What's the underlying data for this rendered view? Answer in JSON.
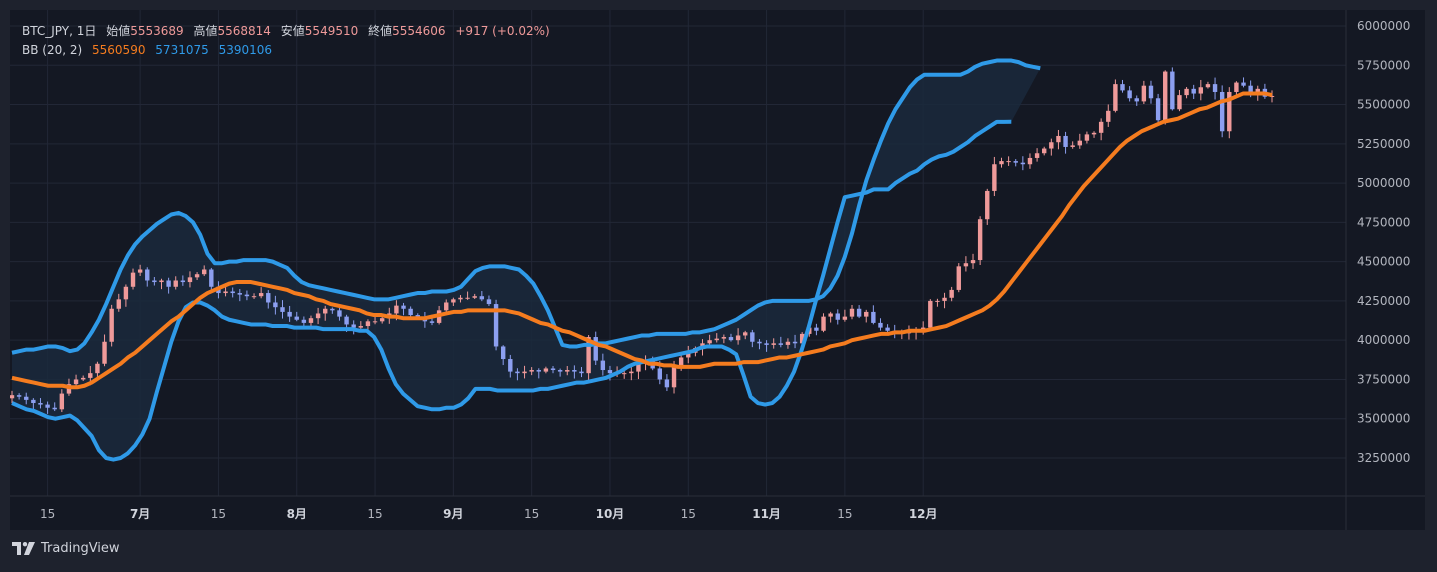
{
  "legend": {
    "symbol": "BTC_JPY, 1日",
    "open_label": "始値",
    "open": "5553689",
    "high_label": "高値",
    "high": "5568814",
    "low_label": "安値",
    "low": "5549510",
    "close_label": "終値",
    "close": "5554606",
    "change": "+917 (+0.02%)",
    "bb_label": "BB (20, 2)",
    "bb_basis": "5560590",
    "bb_upper": "5731075",
    "bb_lower": "5390106"
  },
  "footer": {
    "brand": "TradingView"
  },
  "colors": {
    "background": "#141823",
    "grid": "#222736",
    "up_candle": "#ef9a9a",
    "down_candle": "#8c9ff0",
    "basis": "#f57c1f",
    "bands": "#2f9ae8",
    "band_fill": "#1a2a3d"
  },
  "chart_data": {
    "type": "candlestick",
    "title": "BTC_JPY, 1日",
    "x_ticks": [
      "15",
      "7月",
      "15",
      "8月",
      "15",
      "9月",
      "15",
      "10月",
      "15",
      "11月",
      "15",
      "12月"
    ],
    "y_ticks": [
      "3250000",
      "3500000",
      "3750000",
      "4000000",
      "4250000",
      "4500000",
      "4750000",
      "5000000",
      "5250000",
      "5500000",
      "5750000",
      "6000000"
    ],
    "ylim": [
      3000000,
      6100000
    ],
    "grid": true,
    "closes": [
      3650000,
      3640000,
      3620000,
      3600000,
      3590000,
      3570000,
      3560000,
      3660000,
      3720000,
      3750000,
      3760000,
      3790000,
      3850000,
      3990000,
      4200000,
      4260000,
      4340000,
      4430000,
      4450000,
      4380000,
      4370000,
      4380000,
      4340000,
      4380000,
      4370000,
      4400000,
      4420000,
      4450000,
      4340000,
      4300000,
      4310000,
      4300000,
      4290000,
      4280000,
      4280000,
      4300000,
      4240000,
      4210000,
      4180000,
      4150000,
      4130000,
      4110000,
      4140000,
      4170000,
      4200000,
      4190000,
      4150000,
      4100000,
      4080000,
      4090000,
      4120000,
      4120000,
      4140000,
      4170000,
      4220000,
      4200000,
      4160000,
      4150000,
      4120000,
      4110000,
      4190000,
      4240000,
      4260000,
      4270000,
      4270000,
      4280000,
      4260000,
      4230000,
      3960000,
      3880000,
      3800000,
      3790000,
      3800000,
      3810000,
      3800000,
      3820000,
      3810000,
      3800000,
      3810000,
      3800000,
      3790000,
      4020000,
      3870000,
      3810000,
      3790000,
      3790000,
      3790000,
      3800000,
      3850000,
      3870000,
      3820000,
      3750000,
      3700000,
      3830000,
      3890000,
      3920000,
      3950000,
      3980000,
      4000000,
      4010000,
      4020000,
      4000000,
      4030000,
      4050000,
      3990000,
      3980000,
      3970000,
      3980000,
      3970000,
      3990000,
      3980000,
      4040000,
      4080000,
      4060000,
      4150000,
      4170000,
      4130000,
      4150000,
      4200000,
      4150000,
      4180000,
      4110000,
      4080000,
      4060000,
      4040000,
      4050000,
      4050000,
      4060000,
      4080000,
      4250000,
      4250000,
      4270000,
      4320000,
      4470000,
      4490000,
      4510000,
      4770000,
      4950000,
      5120000,
      5140000,
      5140000,
      5130000,
      5120000,
      5160000,
      5190000,
      5220000,
      5260000,
      5300000,
      5230000,
      5240000,
      5270000,
      5310000,
      5320000,
      5390000,
      5460000,
      5630000,
      5590000,
      5540000,
      5520000,
      5620000,
      5540000,
      5400000,
      5710000,
      5470000,
      5560000,
      5600000,
      5570000,
      5610000,
      5630000,
      5580000,
      5330000,
      5580000,
      5640000,
      5620000,
      5570000,
      5600000,
      5550000,
      5554606
    ],
    "series": [
      {
        "name": "5560590",
        "values": [
          3760000,
          3750000,
          3740000,
          3730000,
          3720000,
          3710000,
          3710000,
          3710000,
          3700000,
          3700000,
          3710000,
          3730000,
          3760000,
          3790000,
          3820000,
          3850000,
          3890000,
          3920000,
          3960000,
          4000000,
          4040000,
          4080000,
          4120000,
          4150000,
          4190000,
          4230000,
          4270000,
          4300000,
          4320000,
          4340000,
          4360000,
          4370000,
          4370000,
          4370000,
          4360000,
          4350000,
          4340000,
          4330000,
          4320000,
          4300000,
          4290000,
          4280000,
          4260000,
          4250000,
          4230000,
          4220000,
          4210000,
          4200000,
          4190000,
          4170000,
          4160000,
          4160000,
          4150000,
          4150000,
          4140000,
          4140000,
          4140000,
          4140000,
          4150000,
          4160000,
          4170000,
          4180000,
          4180000,
          4190000,
          4190000,
          4190000,
          4190000,
          4190000,
          4190000,
          4180000,
          4170000,
          4150000,
          4130000,
          4110000,
          4100000,
          4080000,
          4060000,
          4050000,
          4030000,
          4010000,
          3990000,
          3970000,
          3960000,
          3940000,
          3920000,
          3900000,
          3880000,
          3870000,
          3850000,
          3850000,
          3840000,
          3840000,
          3830000,
          3830000,
          3830000,
          3830000,
          3840000,
          3850000,
          3850000,
          3850000,
          3850000,
          3860000,
          3860000,
          3860000,
          3870000,
          3880000,
          3890000,
          3890000,
          3900000,
          3910000,
          3920000,
          3930000,
          3940000,
          3960000,
          3970000,
          3980000,
          4000000,
          4010000,
          4020000,
          4030000,
          4040000,
          4040000,
          4050000,
          4050000,
          4060000,
          4060000,
          4060000,
          4070000,
          4080000,
          4090000,
          4110000,
          4130000,
          4150000,
          4170000,
          4190000,
          4220000,
          4260000,
          4310000,
          4370000,
          4430000,
          4490000,
          4550000,
          4610000,
          4670000,
          4730000,
          4790000,
          4860000,
          4920000,
          4980000,
          5030000,
          5080000,
          5130000,
          5180000,
          5230000,
          5270000,
          5300000,
          5330000,
          5350000,
          5370000,
          5390000,
          5400000,
          5410000,
          5430000,
          5450000,
          5470000,
          5480000,
          5500000,
          5520000,
          5530000,
          5550000,
          5570000,
          5570000,
          5570000,
          5570000,
          5560590
        ]
      },
      {
        "name": "5731075",
        "values": [
          3920000,
          3930000,
          3940000,
          3940000,
          3950000,
          3960000,
          3960000,
          3950000,
          3930000,
          3940000,
          3980000,
          4050000,
          4130000,
          4230000,
          4340000,
          4450000,
          4540000,
          4610000,
          4660000,
          4700000,
          4740000,
          4770000,
          4800000,
          4810000,
          4790000,
          4750000,
          4670000,
          4550000,
          4490000,
          4490000,
          4500000,
          4500000,
          4510000,
          4510000,
          4510000,
          4510000,
          4500000,
          4480000,
          4460000,
          4410000,
          4370000,
          4350000,
          4340000,
          4330000,
          4320000,
          4310000,
          4300000,
          4290000,
          4280000,
          4270000,
          4260000,
          4260000,
          4260000,
          4270000,
          4280000,
          4290000,
          4300000,
          4300000,
          4310000,
          4310000,
          4310000,
          4320000,
          4340000,
          4390000,
          4440000,
          4460000,
          4470000,
          4470000,
          4470000,
          4460000,
          4450000,
          4410000,
          4360000,
          4280000,
          4190000,
          4080000,
          3970000,
          3960000,
          3960000,
          3970000,
          3970000,
          3980000,
          3980000,
          3990000,
          4000000,
          4010000,
          4020000,
          4030000,
          4030000,
          4040000,
          4040000,
          4040000,
          4040000,
          4040000,
          4050000,
          4050000,
          4060000,
          4070000,
          4090000,
          4110000,
          4130000,
          4160000,
          4190000,
          4220000,
          4240000,
          4250000,
          4250000,
          4250000,
          4250000,
          4250000,
          4250000,
          4260000,
          4280000,
          4330000,
          4410000,
          4530000,
          4680000,
          4860000,
          5020000,
          5150000,
          5270000,
          5380000,
          5470000,
          5540000,
          5610000,
          5660000,
          5690000,
          5690000,
          5690000,
          5690000,
          5690000,
          5690000,
          5710000,
          5740000,
          5760000,
          5770000,
          5780000,
          5780000,
          5780000,
          5770000,
          5750000,
          5740000,
          5731075
        ]
      },
      {
        "name": "5390106",
        "values": [
          3600000,
          3580000,
          3560000,
          3550000,
          3530000,
          3510000,
          3500000,
          3510000,
          3520000,
          3490000,
          3440000,
          3390000,
          3300000,
          3250000,
          3240000,
          3250000,
          3280000,
          3330000,
          3400000,
          3500000,
          3670000,
          3830000,
          3990000,
          4120000,
          4210000,
          4240000,
          4240000,
          4220000,
          4190000,
          4150000,
          4130000,
          4120000,
          4110000,
          4100000,
          4100000,
          4100000,
          4090000,
          4090000,
          4090000,
          4080000,
          4080000,
          4080000,
          4080000,
          4070000,
          4070000,
          4070000,
          4070000,
          4070000,
          4060000,
          4060000,
          4020000,
          3940000,
          3820000,
          3720000,
          3660000,
          3620000,
          3580000,
          3570000,
          3560000,
          3560000,
          3570000,
          3570000,
          3590000,
          3630000,
          3690000,
          3690000,
          3690000,
          3680000,
          3680000,
          3680000,
          3680000,
          3680000,
          3680000,
          3690000,
          3690000,
          3700000,
          3710000,
          3720000,
          3730000,
          3730000,
          3740000,
          3750000,
          3760000,
          3780000,
          3800000,
          3830000,
          3850000,
          3860000,
          3870000,
          3880000,
          3890000,
          3900000,
          3910000,
          3920000,
          3930000,
          3950000,
          3960000,
          3960000,
          3960000,
          3940000,
          3910000,
          3780000,
          3640000,
          3600000,
          3590000,
          3600000,
          3640000,
          3710000,
          3800000,
          3930000,
          4080000,
          4250000,
          4410000,
          4580000,
          4750000,
          4910000,
          4920000,
          4930000,
          4940000,
          4960000,
          4960000,
          4960000,
          5000000,
          5030000,
          5060000,
          5080000,
          5120000,
          5150000,
          5170000,
          5180000,
          5200000,
          5230000,
          5260000,
          5300000,
          5330000,
          5360000,
          5390000,
          5390000,
          5390106
        ]
      }
    ]
  }
}
